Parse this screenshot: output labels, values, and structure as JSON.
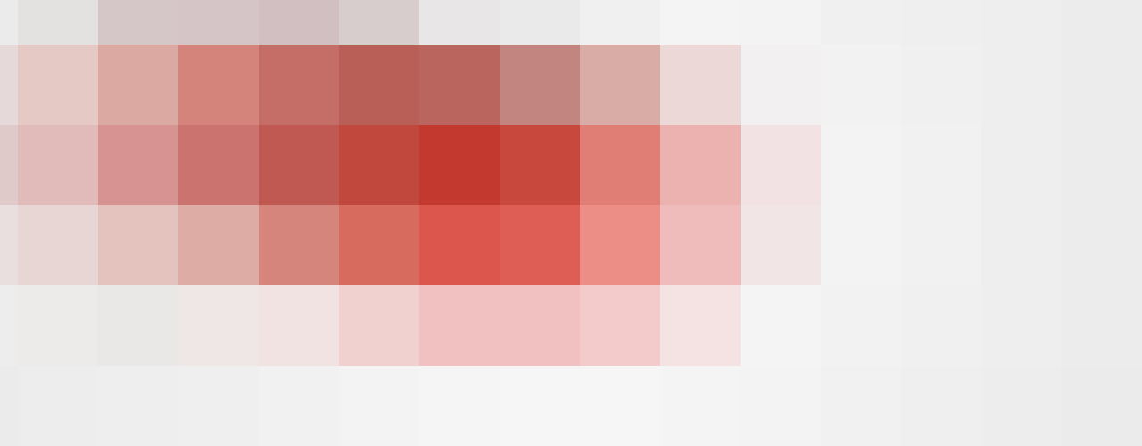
{
  "image": {
    "kind": "pixelated-photo",
    "rows": [
      [
        "#ebebeb",
        "#e3e2e1",
        "#d5c7c8",
        "#d5c5c6",
        "#d1bfc1",
        "#d8cdcd",
        "#e8e6e7",
        "#eaeaea",
        "#f0f0f0",
        "#f4f4f4",
        "#f3f3f3",
        "#f0f0f0",
        "#efefef",
        "#eeeeee",
        "#ececec"
      ],
      [
        "#e5d9d9",
        "#e5c9c5",
        "#dca8a2",
        "#d5847c",
        "#c56e67",
        "#ba5f57",
        "#bb655f",
        "#c28580",
        "#d9aca6",
        "#ecd8d6",
        "#f3f0f1",
        "#f2f2f2",
        "#f0f0f0",
        "#eeeeee",
        "#ececec"
      ],
      [
        "#dfc9c9",
        "#e0bbba",
        "#d69392",
        "#cb746f",
        "#c05951",
        "#c0483d",
        "#c4392f",
        "#c8483d",
        "#e07e75",
        "#ebb2b0",
        "#f2e2e3",
        "#f3f3f3",
        "#f1f1f1",
        "#eeeeee",
        "#ececec"
      ],
      [
        "#e9dfdf",
        "#e8d6d5",
        "#e4c3be",
        "#ddaca4",
        "#d5857b",
        "#d76b5e",
        "#dc564e",
        "#de5d55",
        "#ec8d86",
        "#f0bbbb",
        "#f2e5e5",
        "#f3f3f3",
        "#f1f1f1",
        "#eeeeee",
        "#ececec"
      ],
      [
        "#ededed",
        "#ecebea",
        "#eae8e6",
        "#eee7e5",
        "#f0e3e2",
        "#f0d1cf",
        "#f1c1c1",
        "#f1c1c2",
        "#f2cbca",
        "#f5e2e3",
        "#f4f4f4",
        "#f2f2f2",
        "#f0f0f0",
        "#eeeeee",
        "#ececec"
      ],
      [
        "#ebebeb",
        "#ededed",
        "#eeeeee",
        "#efefef",
        "#f1f1f1",
        "#f3f3f3",
        "#f5f5f5",
        "#f6f6f6",
        "#f6f6f6",
        "#f4f4f4",
        "#f3f3f3",
        "#f1f1f1",
        "#efefef",
        "#ededed",
        "#ebebeb"
      ]
    ]
  }
}
